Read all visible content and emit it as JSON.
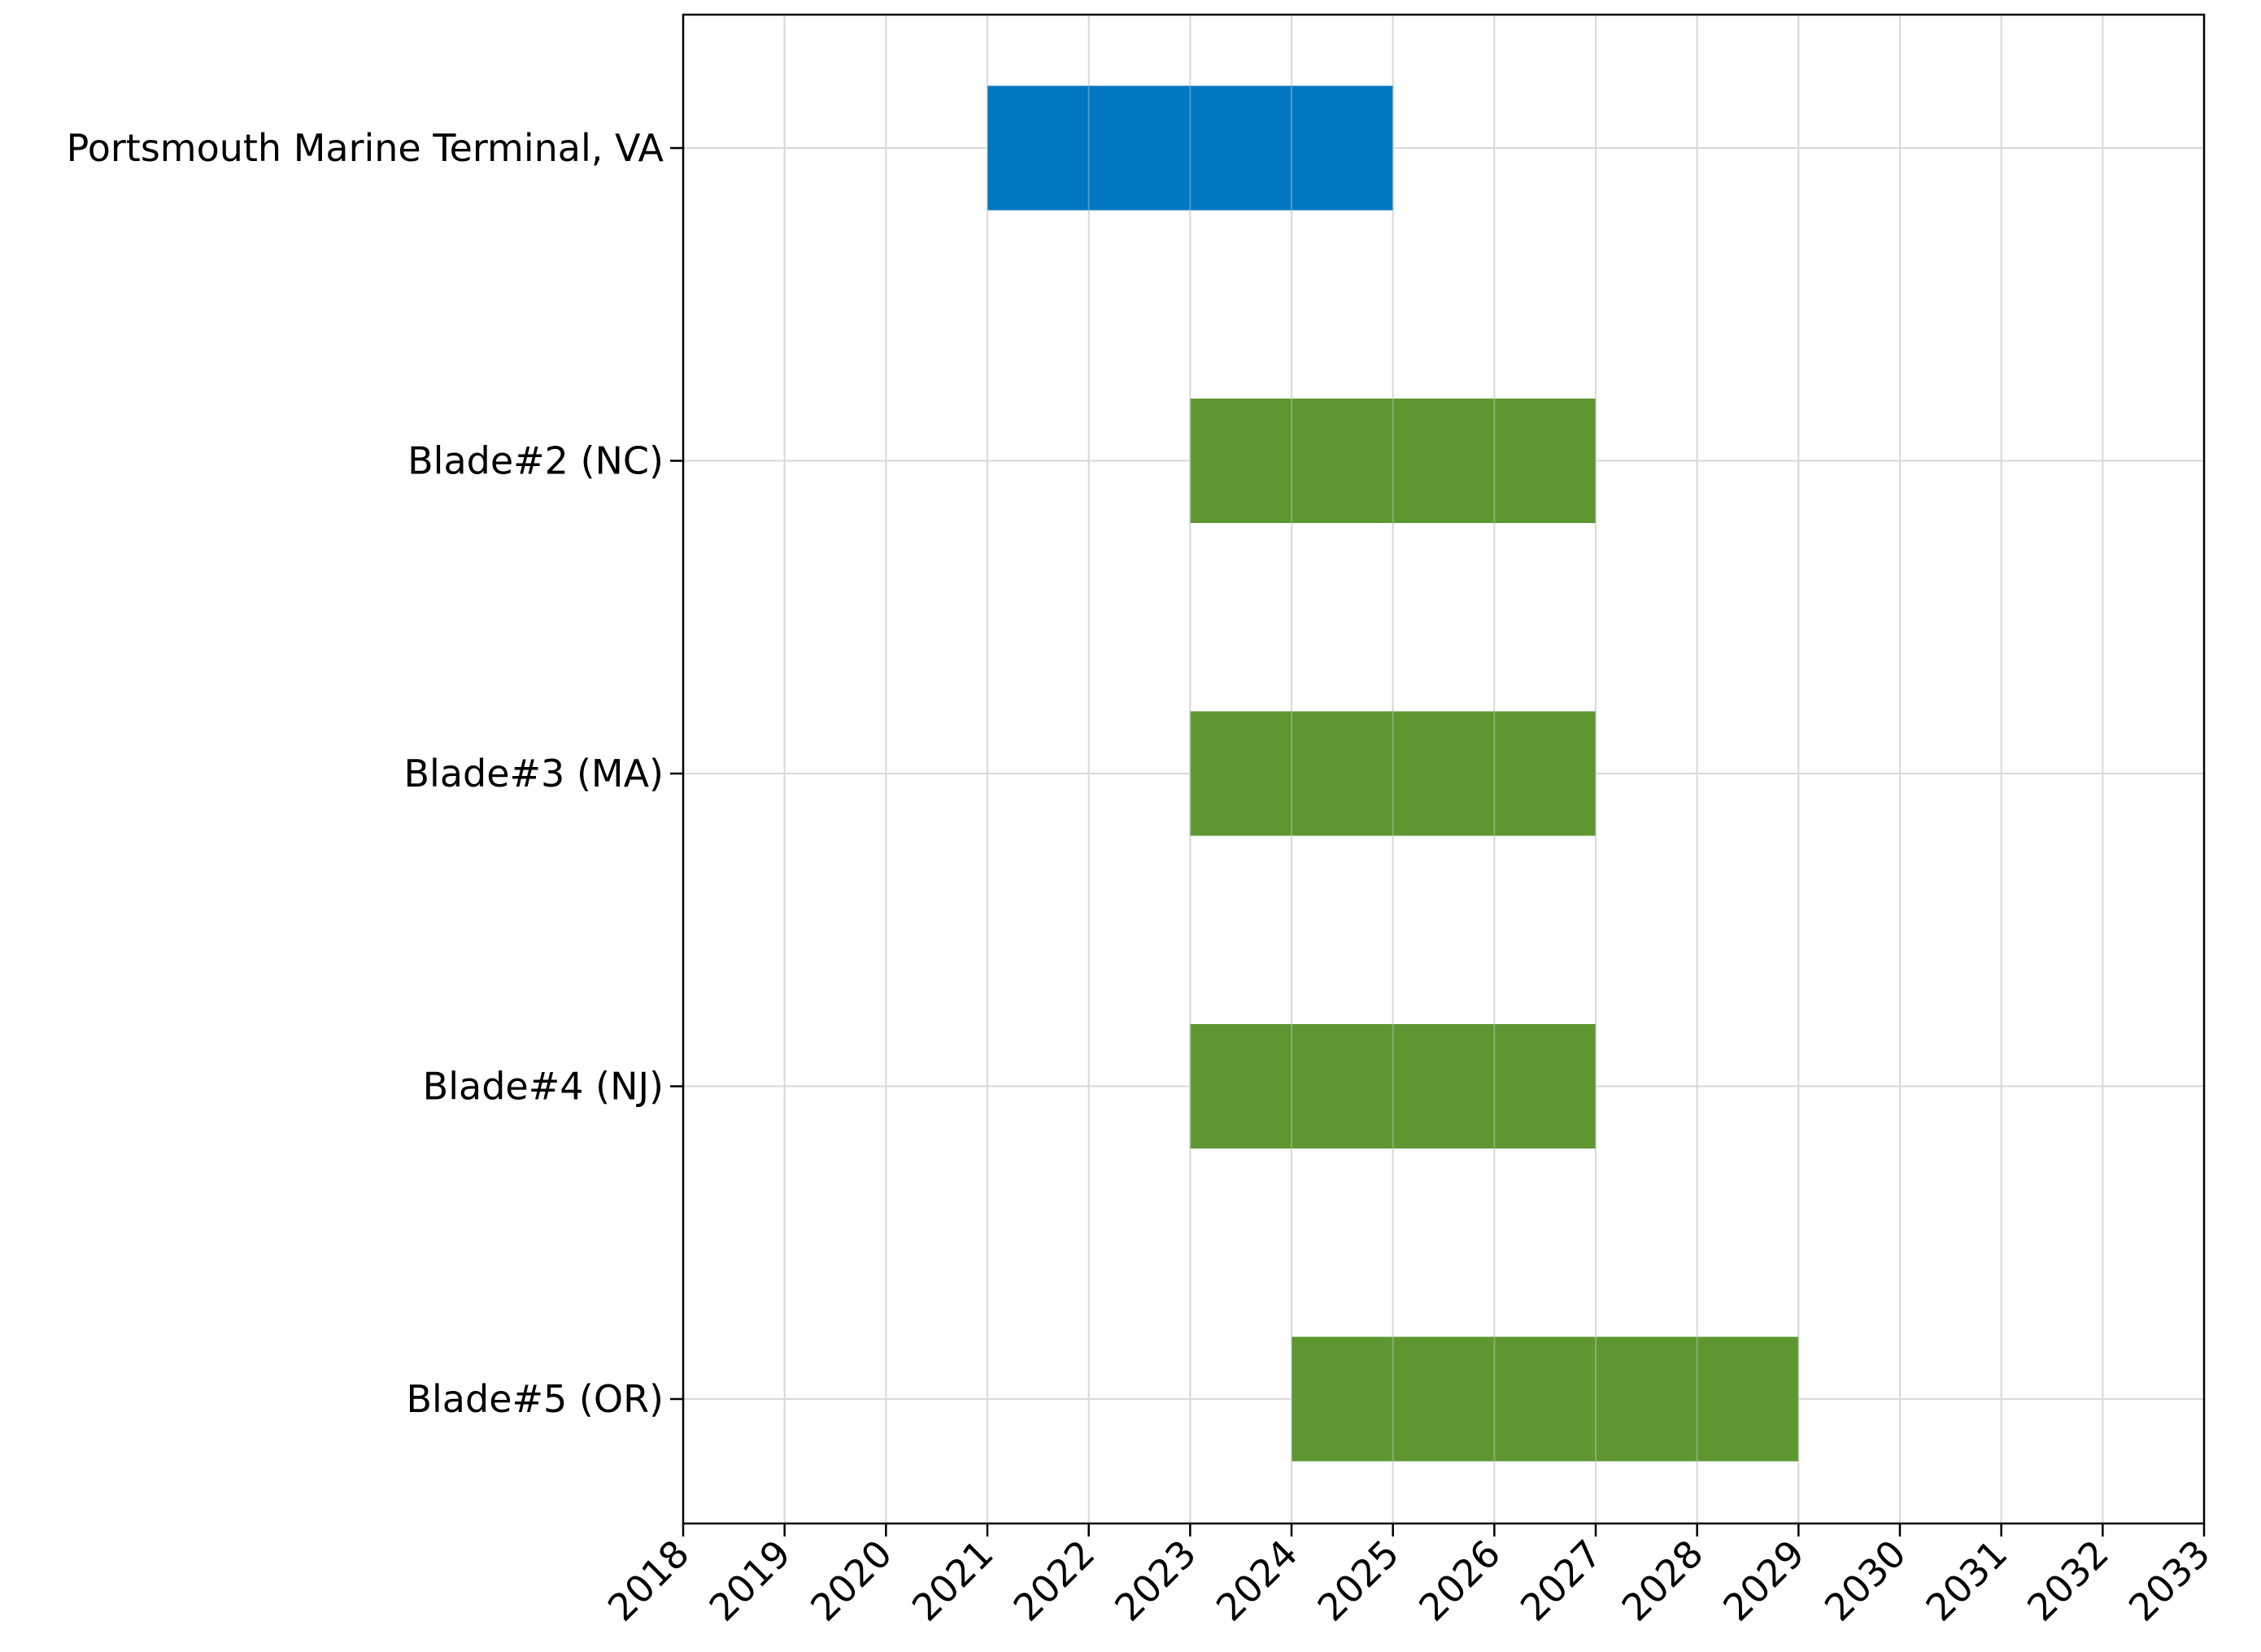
{
  "chart_data": {
    "type": "bar",
    "orientation": "horizontal",
    "title": "",
    "xlabel": "",
    "ylabel": "",
    "xlim": [
      2018,
      2033
    ],
    "xticks": [
      "2018",
      "2019",
      "2020",
      "2021",
      "2022",
      "2023",
      "2024",
      "2025",
      "2026",
      "2027",
      "2028",
      "2029",
      "2030",
      "2031",
      "2032",
      "2033"
    ],
    "grid": true,
    "colors": {
      "primary": "#0077c0",
      "secondary": "#5e9732"
    },
    "categories": [
      "Portsmouth Marine Terminal, VA",
      "Blade#2 (NC)",
      "Blade#3 (MA)",
      "Blade#4 (NJ)",
      "Blade#5 (OR)"
    ],
    "bars": [
      {
        "label": "Portsmouth Marine Terminal, VA",
        "start": 2021,
        "end": 2025,
        "color": "#0077c0"
      },
      {
        "label": "Blade#2 (NC)",
        "start": 2023,
        "end": 2027,
        "color": "#5e9732"
      },
      {
        "label": "Blade#3 (MA)",
        "start": 2023,
        "end": 2027,
        "color": "#5e9732"
      },
      {
        "label": "Blade#4 (NJ)",
        "start": 2023,
        "end": 2027,
        "color": "#5e9732"
      },
      {
        "label": "Blade#5 (OR)",
        "start": 2024,
        "end": 2029,
        "color": "#5e9732"
      }
    ]
  }
}
